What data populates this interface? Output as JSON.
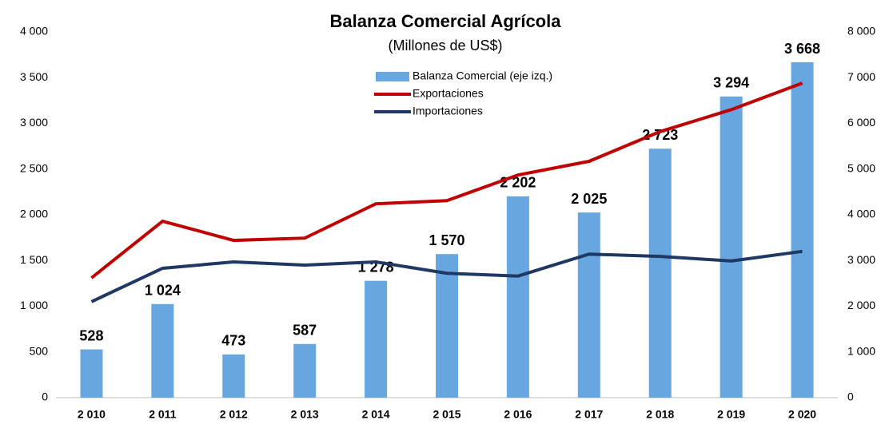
{
  "chart_data": {
    "type": "bar-line",
    "title": "Balanza Comercial Agrícola",
    "subtitle": "(Millones de US$)",
    "categories": [
      "2 010",
      "2 011",
      "2 012",
      "2 013",
      "2 014",
      "2 015",
      "2 016",
      "2 017",
      "2 018",
      "2 019",
      "2 020"
    ],
    "series": [
      {
        "name": "Balanza Comercial (eje izq.)",
        "color": "#67a6de",
        "kind": "bar",
        "values": [
          528,
          1024,
          473,
          587,
          1278,
          1570,
          2202,
          2025,
          2723,
          3294,
          3668
        ],
        "value_labels": [
          "528",
          "1 024",
          "473",
          "587",
          "1 278",
          "1 570",
          "2 202",
          "2 025",
          "2 723",
          "3 294",
          "3 668"
        ]
      },
      {
        "name": "Exportaciones",
        "color": "#c00000",
        "kind": "line",
        "axis": "y2",
        "values": [
          2620,
          3860,
          3440,
          3490,
          4240,
          4310,
          4870,
          5170,
          5820,
          6300,
          6880
        ]
      },
      {
        "name": "Importaciones",
        "color": "#1f3864",
        "kind": "line",
        "axis": "y2",
        "values": [
          2100,
          2830,
          2970,
          2900,
          2970,
          2720,
          2660,
          3140,
          3090,
          2990,
          3200
        ]
      }
    ],
    "ylim": [
      0,
      4000
    ],
    "yticks": [
      0,
      500,
      {
        "value": 1000,
        "label": "1 000"
      },
      {
        "value": 1500,
        "label": "1 500"
      },
      {
        "value": 2000,
        "label": "2 000"
      },
      {
        "value": 2500,
        "label": "2 500"
      },
      {
        "value": 3000,
        "label": "3 000"
      },
      {
        "value": 3500,
        "label": "3 500"
      },
      {
        "value": 4000,
        "label": "4 000"
      }
    ],
    "y2lim": [
      0,
      8000
    ],
    "y2ticks": [
      0,
      {
        "value": 1000,
        "label": "1 000"
      },
      {
        "value": 2000,
        "label": "2 000"
      },
      {
        "value": 3000,
        "label": "3 000"
      },
      {
        "value": 4000,
        "label": "4 000"
      },
      {
        "value": 5000,
        "label": "5 000"
      },
      {
        "value": 6000,
        "label": "6 000"
      },
      {
        "value": 7000,
        "label": "7 000"
      },
      {
        "value": 8000,
        "label": "8 000"
      }
    ]
  }
}
